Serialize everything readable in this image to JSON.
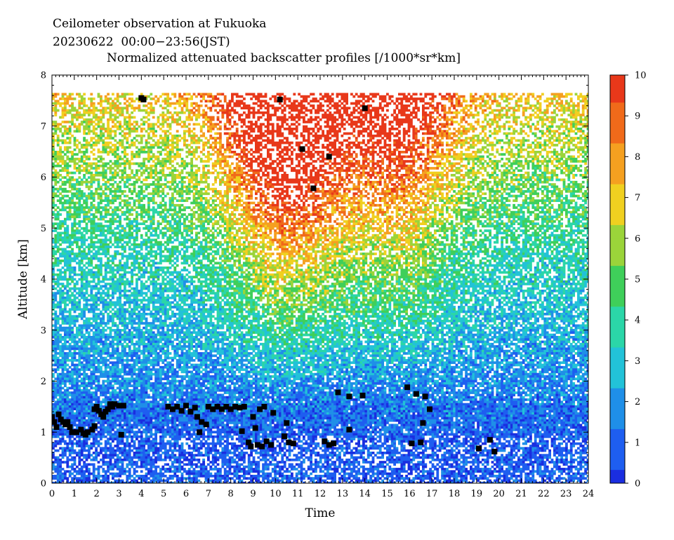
{
  "header": {
    "line1": "Ceilometer observation at Fukuoka",
    "line2": "20230622  00:00−23:56(JST)",
    "line3": "Normalized attenuated backscatter profiles [/1000*sr*km]"
  },
  "chart_data": {
    "type": "heatmap",
    "xlabel": "Time",
    "ylabel": "Altitude [km]",
    "xlim": [
      0,
      24
    ],
    "ylim": [
      0,
      8
    ],
    "x_ticks": [
      "0",
      "1",
      "2",
      "3",
      "4",
      "5",
      "6",
      "7",
      "8",
      "9",
      "10",
      "11",
      "12",
      "13",
      "14",
      "15",
      "16",
      "17",
      "18",
      "19",
      "20",
      "21",
      "22",
      "23",
      "24"
    ],
    "y_ticks": [
      "0",
      "1",
      "2",
      "3",
      "4",
      "5",
      "6",
      "7",
      "8"
    ],
    "data_top_km": 7.65,
    "colorbar": {
      "range": [
        0,
        10
      ],
      "ticks": [
        "0",
        "1",
        "2",
        "3",
        "4",
        "5",
        "6",
        "7",
        "8",
        "9",
        "10"
      ],
      "colors": [
        "#1a2ee0",
        "#1e5ef0",
        "#1f8fe8",
        "#22c2d8",
        "#2bd6a8",
        "#3fcf5a",
        "#9bd43a",
        "#f0d020",
        "#f5a020",
        "#f06a1a",
        "#e8381a"
      ]
    },
    "cloud_color": "#000000",
    "cloud_layers": [
      {
        "x": 0.0,
        "y": 1.3
      },
      {
        "x": 0.1,
        "y": 1.2
      },
      {
        "x": 0.2,
        "y": 1.1
      },
      {
        "x": 0.3,
        "y": 1.35
      },
      {
        "x": 0.4,
        "y": 1.25
      },
      {
        "x": 0.5,
        "y": 1.2
      },
      {
        "x": 0.6,
        "y": 1.15
      },
      {
        "x": 0.7,
        "y": 1.2
      },
      {
        "x": 0.8,
        "y": 1.1
      },
      {
        "x": 0.9,
        "y": 1.0
      },
      {
        "x": 1.0,
        "y": 1.0
      },
      {
        "x": 1.1,
        "y": 1.0
      },
      {
        "x": 1.3,
        "y": 1.05
      },
      {
        "x": 1.4,
        "y": 0.98
      },
      {
        "x": 1.5,
        "y": 0.95
      },
      {
        "x": 1.6,
        "y": 1.0
      },
      {
        "x": 1.8,
        "y": 1.05
      },
      {
        "x": 1.9,
        "y": 1.12
      },
      {
        "x": 1.9,
        "y": 1.45
      },
      {
        "x": 2.0,
        "y": 1.5
      },
      {
        "x": 2.1,
        "y": 1.42
      },
      {
        "x": 2.2,
        "y": 1.35
      },
      {
        "x": 2.3,
        "y": 1.3
      },
      {
        "x": 2.4,
        "y": 1.4
      },
      {
        "x": 2.5,
        "y": 1.45
      },
      {
        "x": 2.6,
        "y": 1.55
      },
      {
        "x": 2.7,
        "y": 1.5
      },
      {
        "x": 2.8,
        "y": 1.55
      },
      {
        "x": 3.0,
        "y": 1.52
      },
      {
        "x": 3.1,
        "y": 0.95
      },
      {
        "x": 3.2,
        "y": 1.52
      },
      {
        "x": 4.0,
        "y": 7.55
      },
      {
        "x": 4.1,
        "y": 7.52
      },
      {
        "x": 5.2,
        "y": 1.5
      },
      {
        "x": 5.4,
        "y": 1.45
      },
      {
        "x": 5.6,
        "y": 1.5
      },
      {
        "x": 5.8,
        "y": 1.42
      },
      {
        "x": 6.0,
        "y": 1.52
      },
      {
        "x": 6.2,
        "y": 1.4
      },
      {
        "x": 6.4,
        "y": 1.48
      },
      {
        "x": 6.5,
        "y": 1.3
      },
      {
        "x": 6.6,
        "y": 1.0
      },
      {
        "x": 6.7,
        "y": 1.2
      },
      {
        "x": 6.9,
        "y": 1.15
      },
      {
        "x": 7.0,
        "y": 1.5
      },
      {
        "x": 7.2,
        "y": 1.45
      },
      {
        "x": 7.4,
        "y": 1.5
      },
      {
        "x": 7.6,
        "y": 1.45
      },
      {
        "x": 7.8,
        "y": 1.5
      },
      {
        "x": 8.0,
        "y": 1.45
      },
      {
        "x": 8.2,
        "y": 1.5
      },
      {
        "x": 8.4,
        "y": 1.48
      },
      {
        "x": 8.5,
        "y": 1.02
      },
      {
        "x": 8.6,
        "y": 1.5
      },
      {
        "x": 8.8,
        "y": 0.8
      },
      {
        "x": 8.9,
        "y": 0.72
      },
      {
        "x": 9.0,
        "y": 1.3
      },
      {
        "x": 9.1,
        "y": 1.08
      },
      {
        "x": 9.2,
        "y": 0.75
      },
      {
        "x": 9.3,
        "y": 1.45
      },
      {
        "x": 9.4,
        "y": 0.72
      },
      {
        "x": 9.5,
        "y": 1.5
      },
      {
        "x": 9.6,
        "y": 0.82
      },
      {
        "x": 9.8,
        "y": 0.75
      },
      {
        "x": 9.9,
        "y": 1.38
      },
      {
        "x": 10.2,
        "y": 7.52
      },
      {
        "x": 10.4,
        "y": 0.92
      },
      {
        "x": 10.5,
        "y": 1.18
      },
      {
        "x": 10.6,
        "y": 0.8
      },
      {
        "x": 10.8,
        "y": 0.78
      },
      {
        "x": 11.2,
        "y": 6.55
      },
      {
        "x": 11.7,
        "y": 5.78
      },
      {
        "x": 12.2,
        "y": 0.82
      },
      {
        "x": 12.4,
        "y": 6.4
      },
      {
        "x": 12.4,
        "y": 0.75
      },
      {
        "x": 12.6,
        "y": 0.78
      },
      {
        "x": 12.8,
        "y": 1.78
      },
      {
        "x": 13.3,
        "y": 1.7
      },
      {
        "x": 13.3,
        "y": 1.05
      },
      {
        "x": 13.9,
        "y": 1.72
      },
      {
        "x": 14.0,
        "y": 7.35
      },
      {
        "x": 15.9,
        "y": 1.88
      },
      {
        "x": 16.1,
        "y": 0.78
      },
      {
        "x": 16.3,
        "y": 1.75
      },
      {
        "x": 16.5,
        "y": 0.8
      },
      {
        "x": 16.6,
        "y": 1.18
      },
      {
        "x": 16.7,
        "y": 1.7
      },
      {
        "x": 16.9,
        "y": 1.45
      },
      {
        "x": 19.1,
        "y": 0.68
      },
      {
        "x": 19.6,
        "y": 0.85
      },
      {
        "x": 19.8,
        "y": 0.62
      }
    ]
  }
}
